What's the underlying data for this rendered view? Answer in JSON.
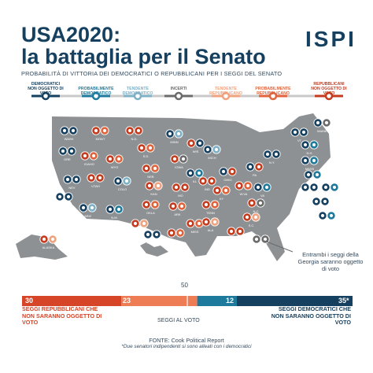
{
  "header": {
    "title_line1": "USA2020:",
    "title_line2": "la battaglia per il Senato",
    "logo": "ISPI",
    "subtitle": "PROBABILITÀ DI VITTORIA DEI DEMOCRATICI O REPUBBLICANI PER I SEGGI DEL SENATO"
  },
  "scale": {
    "items": [
      {
        "label": "DEMOCRATICI NON OGGETTO DI VOTO",
        "color": "#16405f"
      },
      {
        "label": "PROBABILMENTE DEMOCRATICO",
        "color": "#1e7a9c"
      },
      {
        "label": "TENDENTE DEMOCRATICO",
        "color": "#7eb0c6"
      },
      {
        "label": "INCERTI",
        "color": "#6b6b6b"
      },
      {
        "label": "TENDENTE REPUBBLICANO",
        "color": "#f0a27e"
      },
      {
        "label": "PROBABILMENTE REPUBBLICANO",
        "color": "#e0633c"
      },
      {
        "label": "REPUBBLICANI NON OGGETTO DI VOTO",
        "color": "#c43b1e"
      }
    ]
  },
  "map": {
    "land_color": "#8e9193",
    "states": [
      {
        "abbr": "WASH",
        "seats": [
          "#16405f",
          "#16405f"
        ]
      },
      {
        "abbr": "MONT",
        "seats": [
          "#c43b1e",
          "#e0633c"
        ]
      },
      {
        "abbr": "N.D.",
        "seats": [
          "#c43b1e",
          "#c43b1e"
        ]
      },
      {
        "abbr": "MINN",
        "seats": [
          "#16405f",
          "#7eb0c6"
        ]
      },
      {
        "abbr": "WIS",
        "seats": [
          "#c43b1e",
          "#16405f"
        ]
      },
      {
        "abbr": "MICH",
        "seats": [
          "#16405f",
          "#7eb0c6"
        ]
      },
      {
        "abbr": "VT",
        "seats": [
          "#16405f",
          "#16405f"
        ]
      },
      {
        "abbr": "N.H.",
        "seats": [
          "#16405f",
          "#1e7a9c"
        ]
      },
      {
        "abbr": "MAINE",
        "seats": [
          "#16405f",
          "#6b6b6b"
        ]
      },
      {
        "abbr": "ORE",
        "seats": [
          "#16405f",
          "#16405f"
        ]
      },
      {
        "abbr": "IDAHO",
        "seats": [
          "#c43b1e",
          "#e0633c"
        ]
      },
      {
        "abbr": "WYO",
        "seats": [
          "#c43b1e",
          "#e0633c"
        ]
      },
      {
        "abbr": "S.D.",
        "seats": [
          "#c43b1e",
          "#e0633c"
        ]
      },
      {
        "abbr": "IOWA",
        "seats": [
          "#c43b1e",
          "#6b6b6b"
        ]
      },
      {
        "abbr": "N.Y.",
        "seats": [
          "#16405f",
          "#16405f"
        ]
      },
      {
        "abbr": "MASS",
        "seats": [
          "#16405f",
          "#1e7a9c"
        ]
      },
      {
        "abbr": "R.I.",
        "seats": [
          "#16405f",
          "#1e7a9c"
        ]
      },
      {
        "abbr": "NEV",
        "seats": [
          "#16405f",
          "#16405f"
        ]
      },
      {
        "abbr": "UTAH",
        "seats": [
          "#c43b1e",
          "#c43b1e"
        ]
      },
      {
        "abbr": "COLO",
        "seats": [
          "#16405f",
          "#7eb0c6"
        ]
      },
      {
        "abbr": "NEB",
        "seats": [
          "#c43b1e",
          "#e0633c"
        ]
      },
      {
        "abbr": "ILL",
        "seats": [
          "#16405f",
          "#1e7a9c"
        ]
      },
      {
        "abbr": "IND",
        "seats": [
          "#c43b1e",
          "#c43b1e"
        ]
      },
      {
        "abbr": "OHIO",
        "seats": [
          "#16405f",
          "#c43b1e"
        ]
      },
      {
        "abbr": "PA",
        "seats": [
          "#16405f",
          "#c43b1e"
        ]
      },
      {
        "abbr": "CONN",
        "seats": [
          "#16405f",
          "#16405f"
        ]
      },
      {
        "abbr": "CALIF",
        "seats": [
          "#16405f",
          "#16405f"
        ]
      },
      {
        "abbr": "KAN",
        "seats": [
          "#c43b1e",
          "#f0a27e"
        ]
      },
      {
        "abbr": "MO",
        "seats": [
          "#c43b1e",
          "#c43b1e"
        ]
      },
      {
        "abbr": "KY",
        "seats": [
          "#c43b1e",
          "#e0633c"
        ]
      },
      {
        "abbr": "W.VA",
        "seats": [
          "#c43b1e",
          "#e0633c"
        ]
      },
      {
        "abbr": "VA",
        "seats": [
          "#16405f",
          "#1e7a9c"
        ]
      },
      {
        "abbr": "MD",
        "seats": [
          "#16405f",
          "#16405f"
        ]
      },
      {
        "abbr": "DEL",
        "seats": [
          "#16405f",
          "#1e7a9c"
        ]
      },
      {
        "abbr": "N.J.",
        "seats": [
          "#16405f",
          "#1e7a9c"
        ]
      },
      {
        "abbr": "ARIZ",
        "seats": [
          "#16405f",
          "#7eb0c6"
        ]
      },
      {
        "abbr": "N.M.",
        "seats": [
          "#16405f",
          "#1e7a9c"
        ]
      },
      {
        "abbr": "OKLA",
        "seats": [
          "#c43b1e",
          "#e0633c"
        ]
      },
      {
        "abbr": "ARK",
        "seats": [
          "#c43b1e",
          "#e0633c"
        ]
      },
      {
        "abbr": "TENN",
        "seats": [
          "#c43b1e",
          "#e0633c"
        ]
      },
      {
        "abbr": "N.C.",
        "seats": [
          "#c43b1e",
          "#6b6b6b"
        ]
      },
      {
        "abbr": "S.C.",
        "seats": [
          "#c43b1e",
          "#f0a27e"
        ]
      },
      {
        "abbr": "TEXAS",
        "seats": [
          "#c43b1e",
          "#f0a27e"
        ]
      },
      {
        "abbr": "LA",
        "seats": [
          "#c43b1e",
          "#e0633c"
        ]
      },
      {
        "abbr": "MISS",
        "seats": [
          "#c43b1e",
          "#e0633c"
        ]
      },
      {
        "abbr": "ALA",
        "seats": [
          "#c43b1e",
          "#f0a27e"
        ]
      },
      {
        "abbr": "GA",
        "seats": [
          "#6b6b6b",
          "#6b6b6b"
        ]
      },
      {
        "abbr": "FLA",
        "seats": [
          "#c43b1e",
          "#c43b1e"
        ]
      },
      {
        "abbr": "ALASKA",
        "seats": [
          "#c43b1e",
          "#f0a27e"
        ]
      },
      {
        "abbr": "HAWAII",
        "seats": [
          "#16405f",
          "#16405f"
        ]
      }
    ],
    "georgia_note": "Entrambi i seggi della Georgia saranno oggetto di voto"
  },
  "bar": {
    "seggi_rep_non_voto": 30,
    "seggi_rep_al_voto": 23,
    "seggi_dem_al_voto": 12,
    "seggi_dem_non_voto": "35*",
    "maggioranza": "50",
    "seggi_incerti": 0,
    "colors": {
      "rep_non_voto": "#d64528",
      "rep_voto": "#ee7c55",
      "incerti": "#c9c9c9",
      "dem_voto": "#1e7a9c",
      "dem_non_voto": "#16405f"
    },
    "left_label": "SEGGI REPUBBLICANI CHE NON SARANNO OGGETTO DI VOTO",
    "right_label": "SEGGI DEMOCRATICI CHE NON SARANNO OGGETTO DI VOTO",
    "center_label": "SEGGI AL VOTO"
  },
  "footer": {
    "source": "FONTE: Cook Political Report",
    "footnote": "*Due senatori indipendenti si sono alleati con i democratici"
  }
}
